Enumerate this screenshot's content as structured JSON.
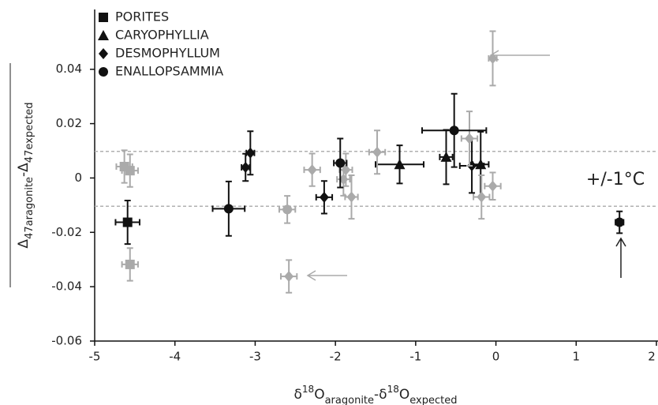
{
  "chart_data": {
    "type": "scatter",
    "x_label_parts": [
      "δ",
      "18",
      "O",
      "aragonite",
      "-δ",
      "18",
      "O",
      "expected"
    ],
    "y_label_parts": [
      "Δ",
      "47aragonite",
      "-Δ",
      "47expected"
    ],
    "annotation": "+/-1°C",
    "xlim": [
      -5,
      2
    ],
    "xticks": [
      -5,
      -4,
      -3,
      -2,
      -1,
      0,
      1,
      2
    ],
    "ylim": [
      -0.06,
      0.062
    ],
    "yticks": [
      -0.06,
      -0.04,
      -0.02,
      0,
      0.02,
      0.04
    ],
    "ref_lines": [
      0.0098,
      -0.0104
    ],
    "ref_color": "#b0b0b0",
    "series": [
      {
        "name": "PORITES",
        "marker": "square",
        "color": "#111111",
        "colors": [
          "#111111",
          "#aaaaaa",
          "#aaaaaa",
          "#aaaaaa"
        ],
        "x": [
          -4.59,
          -4.63,
          -4.56,
          -4.56
        ],
        "values": [
          -0.0163,
          0.0042,
          0.0027,
          -0.0318
        ],
        "xerr": [
          0.15,
          0.1,
          0.1,
          0.1
        ],
        "yerr": [
          0.008,
          0.006,
          0.006,
          0.006
        ]
      },
      {
        "name": "CARYOPHYLLIA",
        "marker": "triangle",
        "color": "#111111",
        "colors": [
          "#111111",
          "#111111",
          "#111111"
        ],
        "x": [
          -0.62,
          -1.2,
          -0.19
        ],
        "values": [
          0.0077,
          0.005,
          0.005
        ],
        "xerr": [
          0.08,
          0.3,
          0.1
        ],
        "yerr": [
          0.01,
          0.007,
          0.012
        ]
      },
      {
        "name": "DESMOPHYLLUM",
        "marker": "diamond",
        "color": "#111111",
        "colors": [
          "#111111",
          "#111111",
          "#111111",
          "#111111",
          "#aaaaaa",
          "#aaaaaa",
          "#aaaaaa",
          "#aaaaaa",
          "#aaaaaa",
          "#aaaaaa",
          "#aaaaaa",
          "#aaaaaa",
          "#aaaaaa",
          "#aaaaaa"
        ],
        "x": [
          -3.06,
          -3.12,
          -2.14,
          -0.3,
          -2.29,
          -1.87,
          -1.9,
          -1.8,
          -1.48,
          -0.33,
          -0.18,
          -0.04,
          -0.04,
          -2.58
        ],
        "values": [
          0.0092,
          0.0039,
          -0.0071,
          0.0045,
          0.003,
          0.003,
          -0.0005,
          -0.007,
          0.0095,
          0.0145,
          -0.007,
          -0.003,
          0.044,
          -0.0362
        ],
        "xerr": [
          0.05,
          0.05,
          0.1,
          0.15,
          0.1,
          0.08,
          0.08,
          0.08,
          0.1,
          0.1,
          0.1,
          0.1,
          0.05,
          0.1
        ],
        "yerr": [
          0.008,
          0.005,
          0.006,
          0.01,
          0.006,
          0.006,
          0.006,
          0.008,
          0.008,
          0.01,
          0.008,
          0.005,
          0.01,
          0.006
        ]
      },
      {
        "name": "ENALLOPSAMMIA",
        "marker": "circle",
        "color": "#111111",
        "colors": [
          "#111111",
          "#111111",
          "#111111",
          "#111111",
          "#aaaaaa"
        ],
        "x": [
          -3.33,
          -1.94,
          -0.52,
          1.54,
          -2.6
        ],
        "values": [
          -0.0113,
          0.0055,
          0.0175,
          -0.0163,
          -0.0116
        ],
        "xerr": [
          0.2,
          0.08,
          0.4,
          0.05,
          0.1
        ],
        "yerr": [
          0.01,
          0.009,
          0.0135,
          0.004,
          0.005
        ]
      }
    ]
  }
}
